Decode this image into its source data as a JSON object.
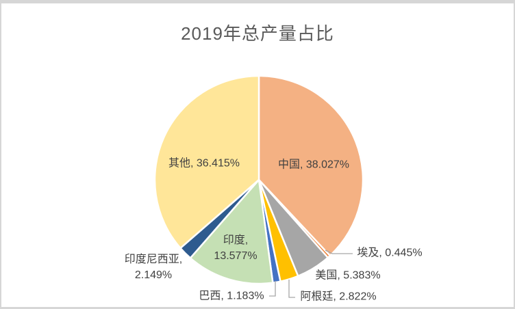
{
  "chart_data": {
    "type": "pie",
    "title": "2019年总产量占比",
    "unit": "%",
    "direction": "clockwise",
    "start_angle_deg": 0,
    "legend": "none",
    "title_color": "#595959",
    "label_color": "#404040",
    "leader_line_color": "#a6a6a6",
    "slices": [
      {
        "name": "中国",
        "value": 38.027,
        "color": "#F4B183"
      },
      {
        "name": "埃及",
        "value": 0.445,
        "color": "#ED7D31"
      },
      {
        "name": "美国",
        "value": 5.383,
        "color": "#A6A6A6"
      },
      {
        "name": "阿根廷",
        "value": 2.822,
        "color": "#FFC000"
      },
      {
        "name": "巴西",
        "value": 1.183,
        "color": "#4472C4"
      },
      {
        "name": "印度",
        "value": 13.577,
        "color": "#C5E0B4"
      },
      {
        "name": "印度尼西亚",
        "value": 2.149,
        "color": "#2E5B8F"
      },
      {
        "name": "其他",
        "value": 36.415,
        "color": "#FFE699"
      }
    ],
    "labels": {
      "china": "中国, 38.027%",
      "other": "其他, 36.415%",
      "india_line1": "印度,",
      "india_line2": "13.577%",
      "indonesia_line1": "印度尼西亚,",
      "indonesia_line2": "2.149%",
      "brazil": "巴西, 1.183%",
      "argentina": "阿根廷, 2.822%",
      "usa": "美国, 5.383%",
      "egypt": "埃及, 0.445%"
    }
  }
}
